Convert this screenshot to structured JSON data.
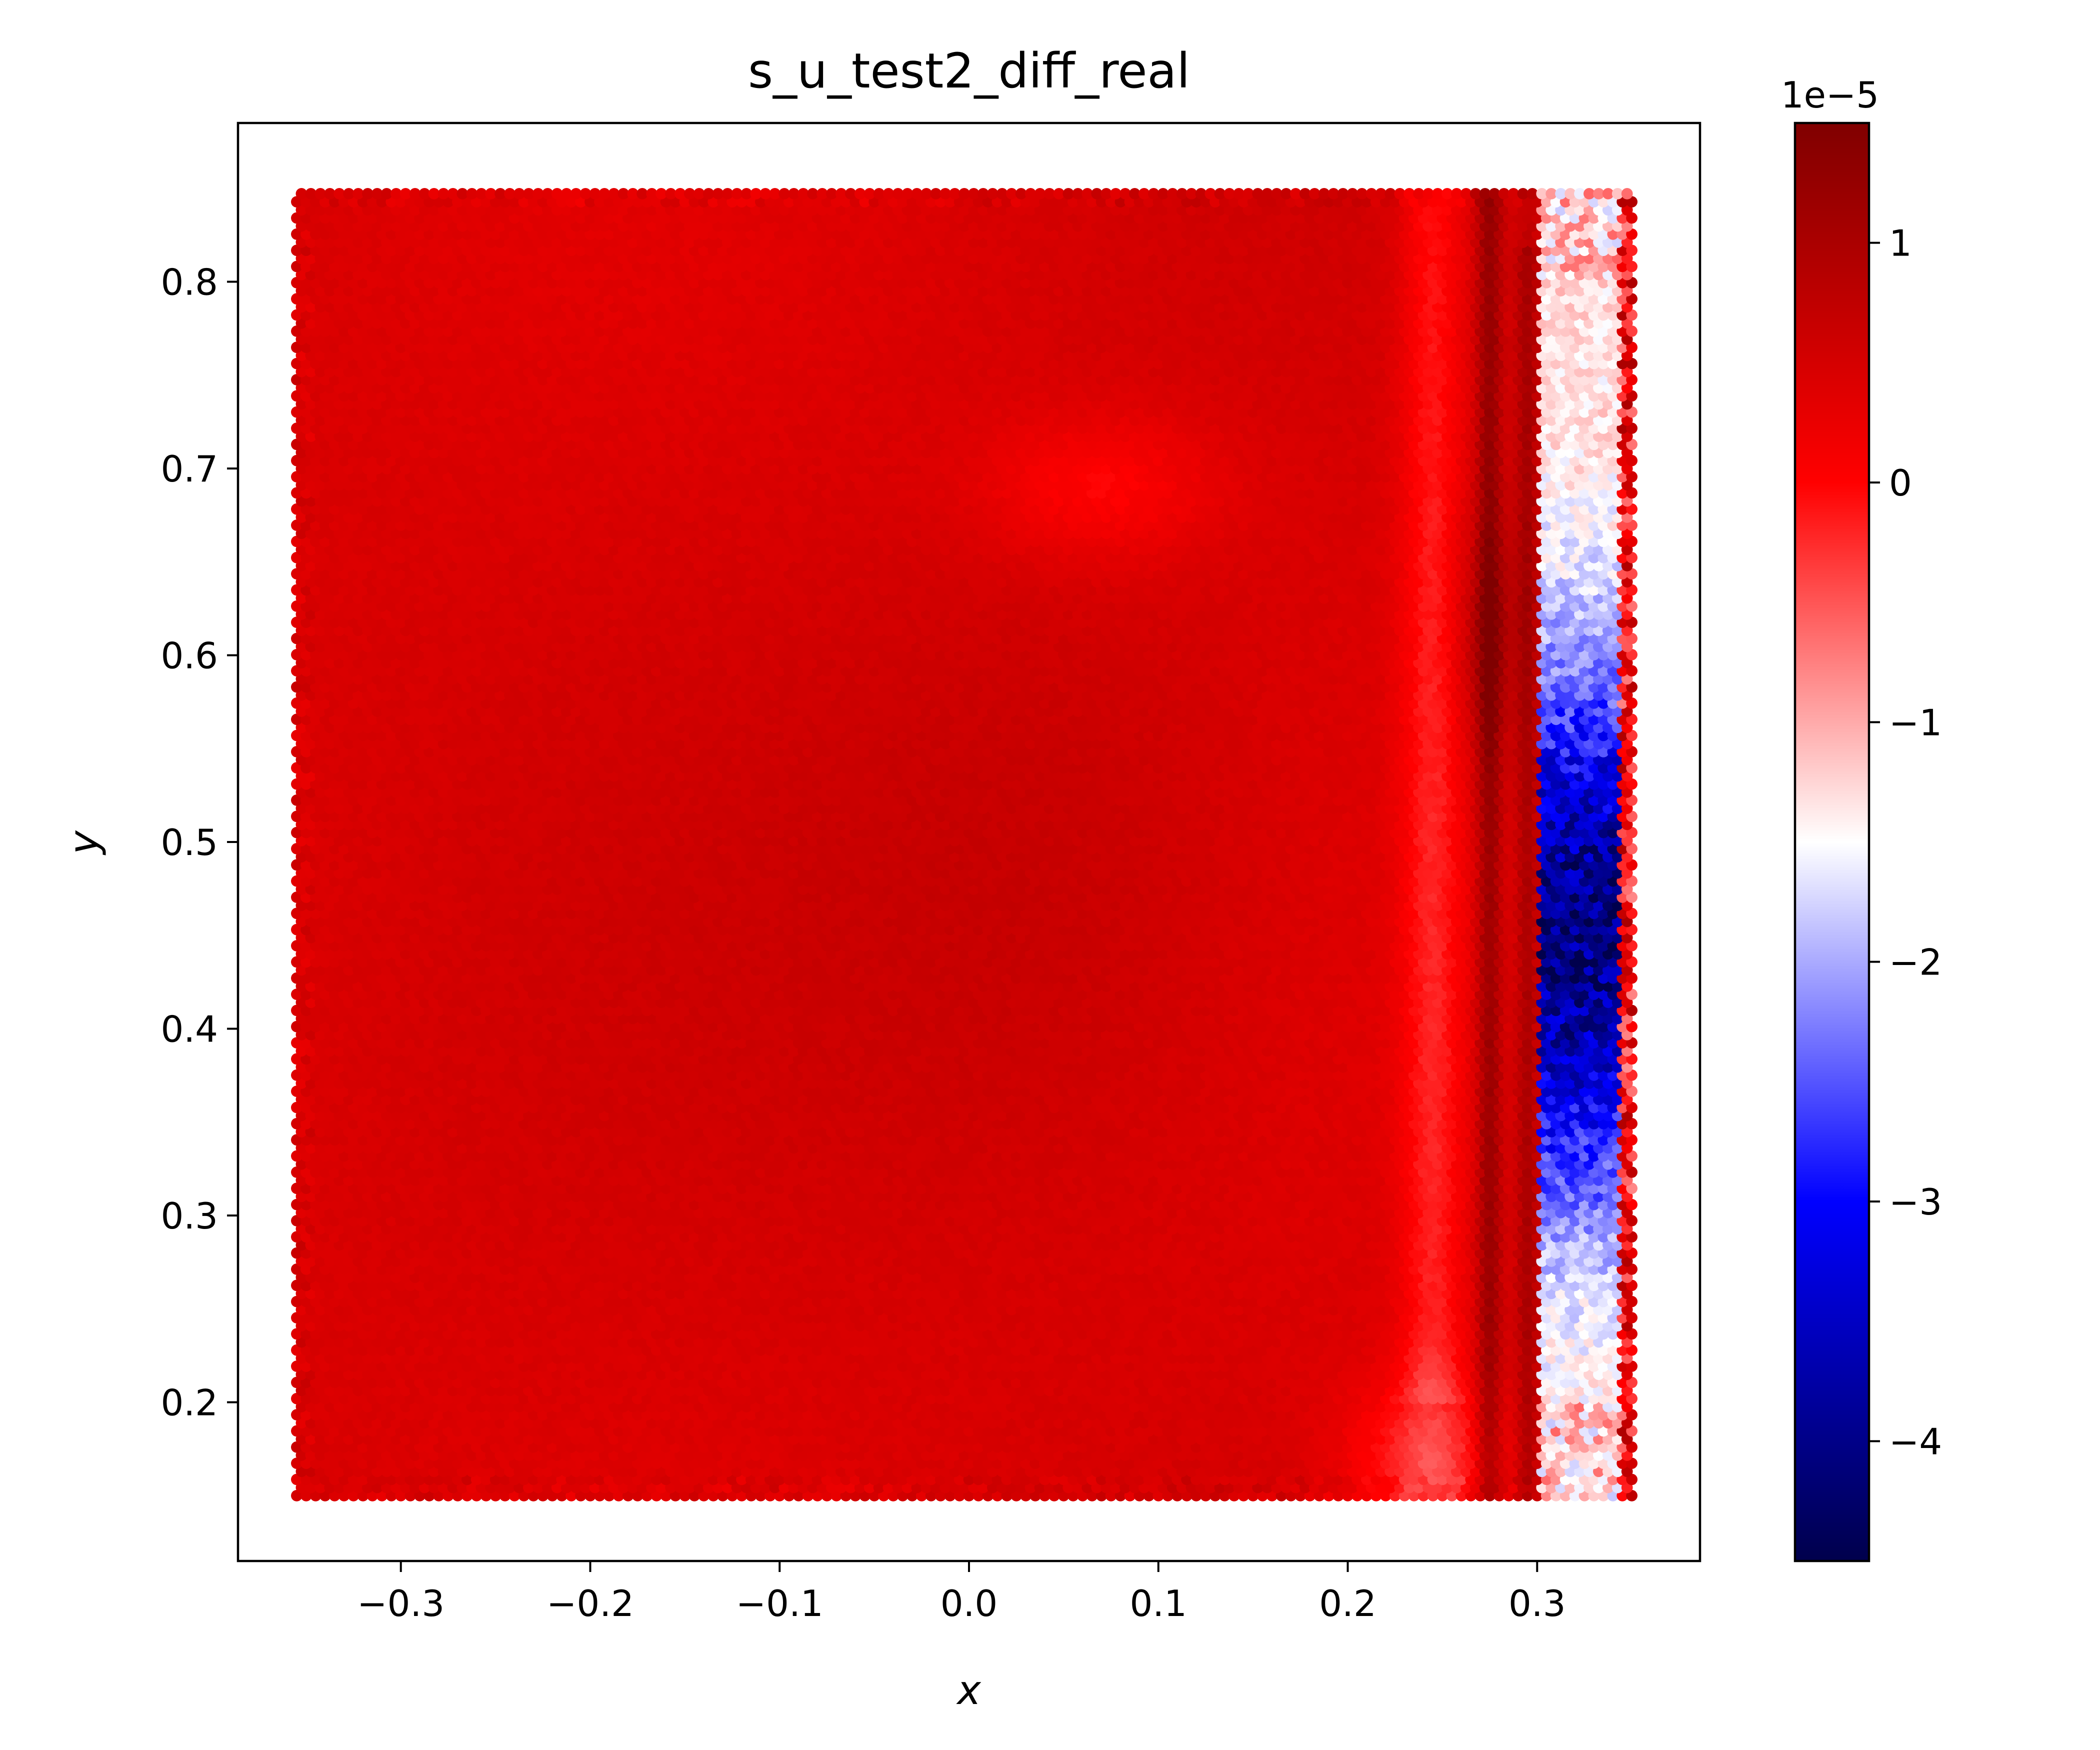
{
  "chart_data": {
    "type": "scatter",
    "title": "s_u_test2_diff_real",
    "xlabel": "x",
    "ylabel": "y",
    "xlim": [
      -0.386,
      0.386
    ],
    "ylim": [
      0.115,
      0.885
    ],
    "x_ticks": [
      -0.3,
      -0.2,
      -0.1,
      0.0,
      0.1,
      0.2,
      0.3
    ],
    "x_tick_labels": [
      "−0.3",
      "−0.2",
      "−0.1",
      "0.0",
      "0.1",
      "0.2",
      "0.3"
    ],
    "y_ticks": [
      0.2,
      0.3,
      0.4,
      0.5,
      0.6,
      0.7,
      0.8
    ],
    "y_tick_labels": [
      "0.2",
      "0.3",
      "0.4",
      "0.5",
      "0.6",
      "0.7",
      "0.8"
    ],
    "grid": false,
    "colormap": "seismic",
    "colorbar": {
      "range": [
        -4.5e-05,
        1.5e-05
      ],
      "offset_label": "1e−5",
      "ticks": [
        1,
        0,
        -1,
        -2,
        -3,
        -4
      ],
      "tick_labels": [
        "1",
        "0",
        "−1",
        "−2",
        "−3",
        "−4"
      ]
    },
    "point_grid": {
      "x_range": [
        -0.355,
        0.35
      ],
      "y_range": [
        0.15,
        0.85
      ],
      "spacing": 0.005
    },
    "field_description": [
      {
        "x": [
          -0.355,
          0.3
        ],
        "y": [
          0.15,
          0.85
        ],
        "value_range_e5": [
          -0.3,
          0.9
        ],
        "note": "mostly 0 to 1e-5 (red)"
      },
      {
        "x": [
          0.27,
          0.29
        ],
        "y": [
          0.2,
          0.85
        ],
        "value_range_e5": [
          0.6,
          1.3
        ],
        "note": "dark red vertical streak"
      },
      {
        "x": [
          0.305,
          0.34
        ],
        "y": [
          0.2,
          0.8
        ],
        "value_range_e5": [
          -4.5,
          -1.0
        ],
        "note": "blue band, minimum near y=0.45"
      }
    ]
  }
}
